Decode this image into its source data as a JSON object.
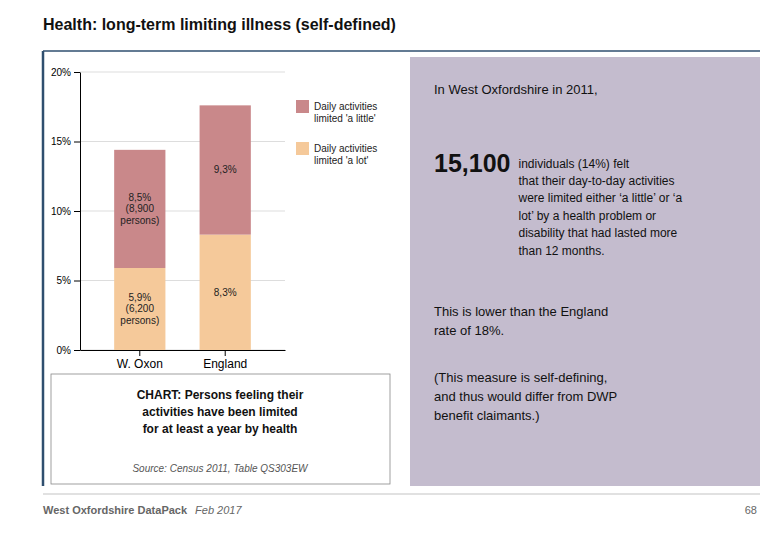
{
  "chart_data": {
    "type": "bar",
    "stacked": true,
    "title": "Health: long-term limiting illness (self-defined)",
    "categories": [
      "W. Oxon",
      "England"
    ],
    "series": [
      {
        "name": "Daily activities\nlimited 'a lot'",
        "color": "#F5C99A",
        "values": [
          5.9,
          8.3
        ],
        "value_labels": [
          "5,9%\n(6,200\npersons)",
          "8,3%"
        ]
      },
      {
        "name": "Daily activities\nlimited 'a little'",
        "color": "#C9888A",
        "values": [
          8.5,
          9.3
        ],
        "value_labels": [
          "8,5%\n(8,900\npersons)",
          "9,3%"
        ]
      }
    ],
    "ylim": [
      0,
      20
    ],
    "yticks": [
      {
        "value": 0,
        "label": "0%"
      },
      {
        "value": 5,
        "label": "5%"
      },
      {
        "value": 10,
        "label": "10%"
      },
      {
        "value": 15,
        "label": "15%"
      },
      {
        "value": 20,
        "label": "20%"
      }
    ],
    "grid": true,
    "data_labels": true,
    "caption": "CHART: Persons feeling their\nactivities have been limited\nfor at least a year by health",
    "source": "Source: Census 2011, Table QS303EW",
    "panel": {
      "intro": "In West Oxfordshire in 2011,",
      "number": "15,100",
      "text": "individuals (14%) felt\nthat their day-to-day activities\nwere limited either ‘a little’ or ‘a\nlot’ by a health problem or\ndisability that had lasted more\nthan 12 months.",
      "comparison": "This is lower than the England\nrate of 18%.",
      "note": "(This measure is self-defining,\nand thus would differ from DWP\nbenefit claimants.)"
    },
    "footer": [
      "West Oxfordshire DataPack",
      "Feb 2017",
      "68"
    ]
  }
}
